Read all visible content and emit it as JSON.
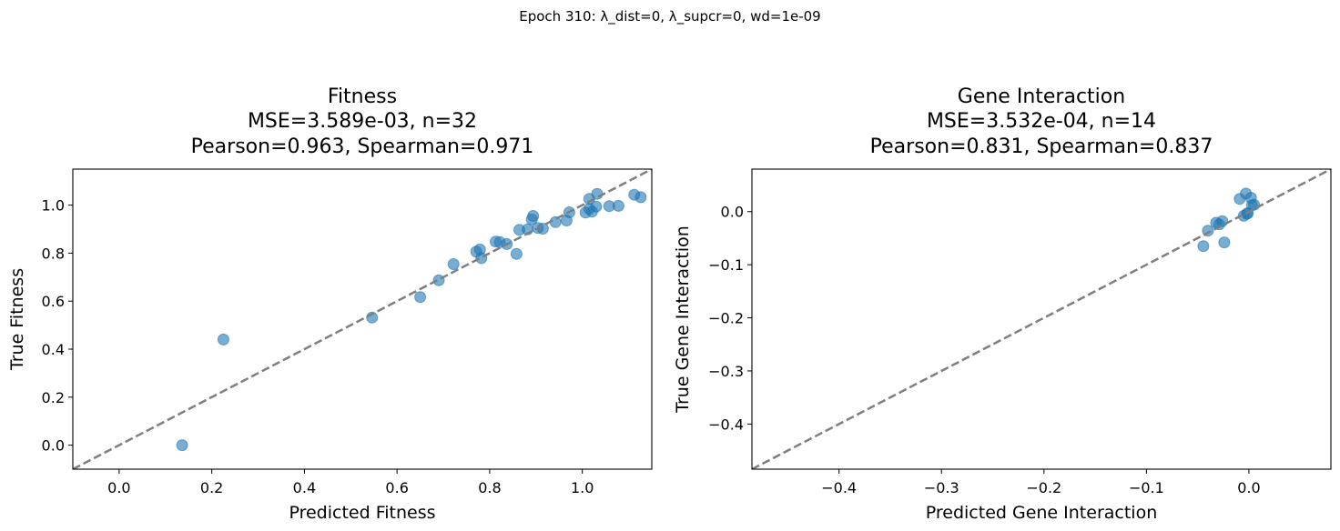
{
  "figure": {
    "suptitle": "Epoch 310: λ_dist=0, λ_supcr=0, wd=1e-09"
  },
  "colors": {
    "point": "#1f77b4",
    "identity_line": "#7f7f7f",
    "axes": "#000000"
  },
  "chart_data": [
    {
      "type": "scatter",
      "title": [
        "Fitness",
        "MSE=3.589e-03, n=32",
        "Pearson=0.963, Spearman=0.971"
      ],
      "xlabel": "Predicted Fitness",
      "ylabel": "True Fitness",
      "xlim": [
        -0.1,
        1.15
      ],
      "ylim": [
        -0.1,
        1.15
      ],
      "xticks": [
        0.0,
        0.2,
        0.4,
        0.6,
        0.8,
        1.0
      ],
      "xtick_labels": [
        "0.0",
        "0.2",
        "0.4",
        "0.6",
        "0.8",
        "1.0"
      ],
      "yticks": [
        0.0,
        0.2,
        0.4,
        0.6,
        0.8,
        1.0
      ],
      "ytick_labels": [
        "0.0",
        "0.2",
        "0.4",
        "0.6",
        "0.8",
        "1.0"
      ],
      "identity_line": true,
      "grid": false,
      "points": [
        {
          "x": 0.136,
          "y": 0.0
        },
        {
          "x": 0.225,
          "y": 0.44
        },
        {
          "x": 0.546,
          "y": 0.532
        },
        {
          "x": 0.65,
          "y": 0.617
        },
        {
          "x": 0.69,
          "y": 0.687
        },
        {
          "x": 0.722,
          "y": 0.754
        },
        {
          "x": 0.771,
          "y": 0.806
        },
        {
          "x": 0.779,
          "y": 0.815
        },
        {
          "x": 0.782,
          "y": 0.779
        },
        {
          "x": 0.813,
          "y": 0.848
        },
        {
          "x": 0.822,
          "y": 0.846
        },
        {
          "x": 0.837,
          "y": 0.838
        },
        {
          "x": 0.858,
          "y": 0.797
        },
        {
          "x": 0.864,
          "y": 0.897
        },
        {
          "x": 0.882,
          "y": 0.899
        },
        {
          "x": 0.891,
          "y": 0.941
        },
        {
          "x": 0.894,
          "y": 0.955
        },
        {
          "x": 0.904,
          "y": 0.905
        },
        {
          "x": 0.915,
          "y": 0.902
        },
        {
          "x": 0.942,
          "y": 0.929
        },
        {
          "x": 0.966,
          "y": 0.936
        },
        {
          "x": 0.972,
          "y": 0.97
        },
        {
          "x": 1.007,
          "y": 0.969
        },
        {
          "x": 1.015,
          "y": 1.026
        },
        {
          "x": 1.015,
          "y": 0.984
        },
        {
          "x": 1.021,
          "y": 0.973
        },
        {
          "x": 1.03,
          "y": 0.994
        },
        {
          "x": 1.032,
          "y": 1.047
        },
        {
          "x": 1.058,
          "y": 0.996
        },
        {
          "x": 1.078,
          "y": 0.997
        },
        {
          "x": 1.112,
          "y": 1.043
        },
        {
          "x": 1.126,
          "y": 1.033
        }
      ]
    },
    {
      "type": "scatter",
      "title": [
        "Gene Interaction",
        "MSE=3.532e-04, n=14",
        "Pearson=0.831, Spearman=0.837"
      ],
      "xlabel": "Predicted Gene Interaction",
      "ylabel": "True Gene Interaction",
      "xlim": [
        -0.485,
        0.08
      ],
      "ylim": [
        -0.485,
        0.08
      ],
      "xticks": [
        -0.4,
        -0.3,
        -0.2,
        -0.1,
        0.0
      ],
      "xtick_labels": [
        "−0.4",
        "−0.3",
        "−0.2",
        "−0.1",
        "0.0"
      ],
      "yticks": [
        -0.4,
        -0.3,
        -0.2,
        -0.1,
        0.0
      ],
      "ytick_labels": [
        "−0.4",
        "−0.3",
        "−0.2",
        "−0.1",
        "0.0"
      ],
      "identity_line": true,
      "grid": false,
      "points": [
        {
          "x": -0.0445,
          "y": -0.065
        },
        {
          "x": -0.04,
          "y": -0.036
        },
        {
          "x": -0.032,
          "y": -0.021
        },
        {
          "x": -0.029,
          "y": -0.024
        },
        {
          "x": -0.026,
          "y": -0.018
        },
        {
          "x": -0.024,
          "y": -0.058
        },
        {
          "x": -0.009,
          "y": 0.024
        },
        {
          "x": -0.005,
          "y": -0.008
        },
        {
          "x": -0.003,
          "y": 0.034
        },
        {
          "x": -0.002,
          "y": -0.004
        },
        {
          "x": -0.001,
          "y": -0.003
        },
        {
          "x": 0.002,
          "y": 0.026
        },
        {
          "x": 0.003,
          "y": 0.012
        },
        {
          "x": 0.005,
          "y": 0.013
        }
      ]
    }
  ]
}
